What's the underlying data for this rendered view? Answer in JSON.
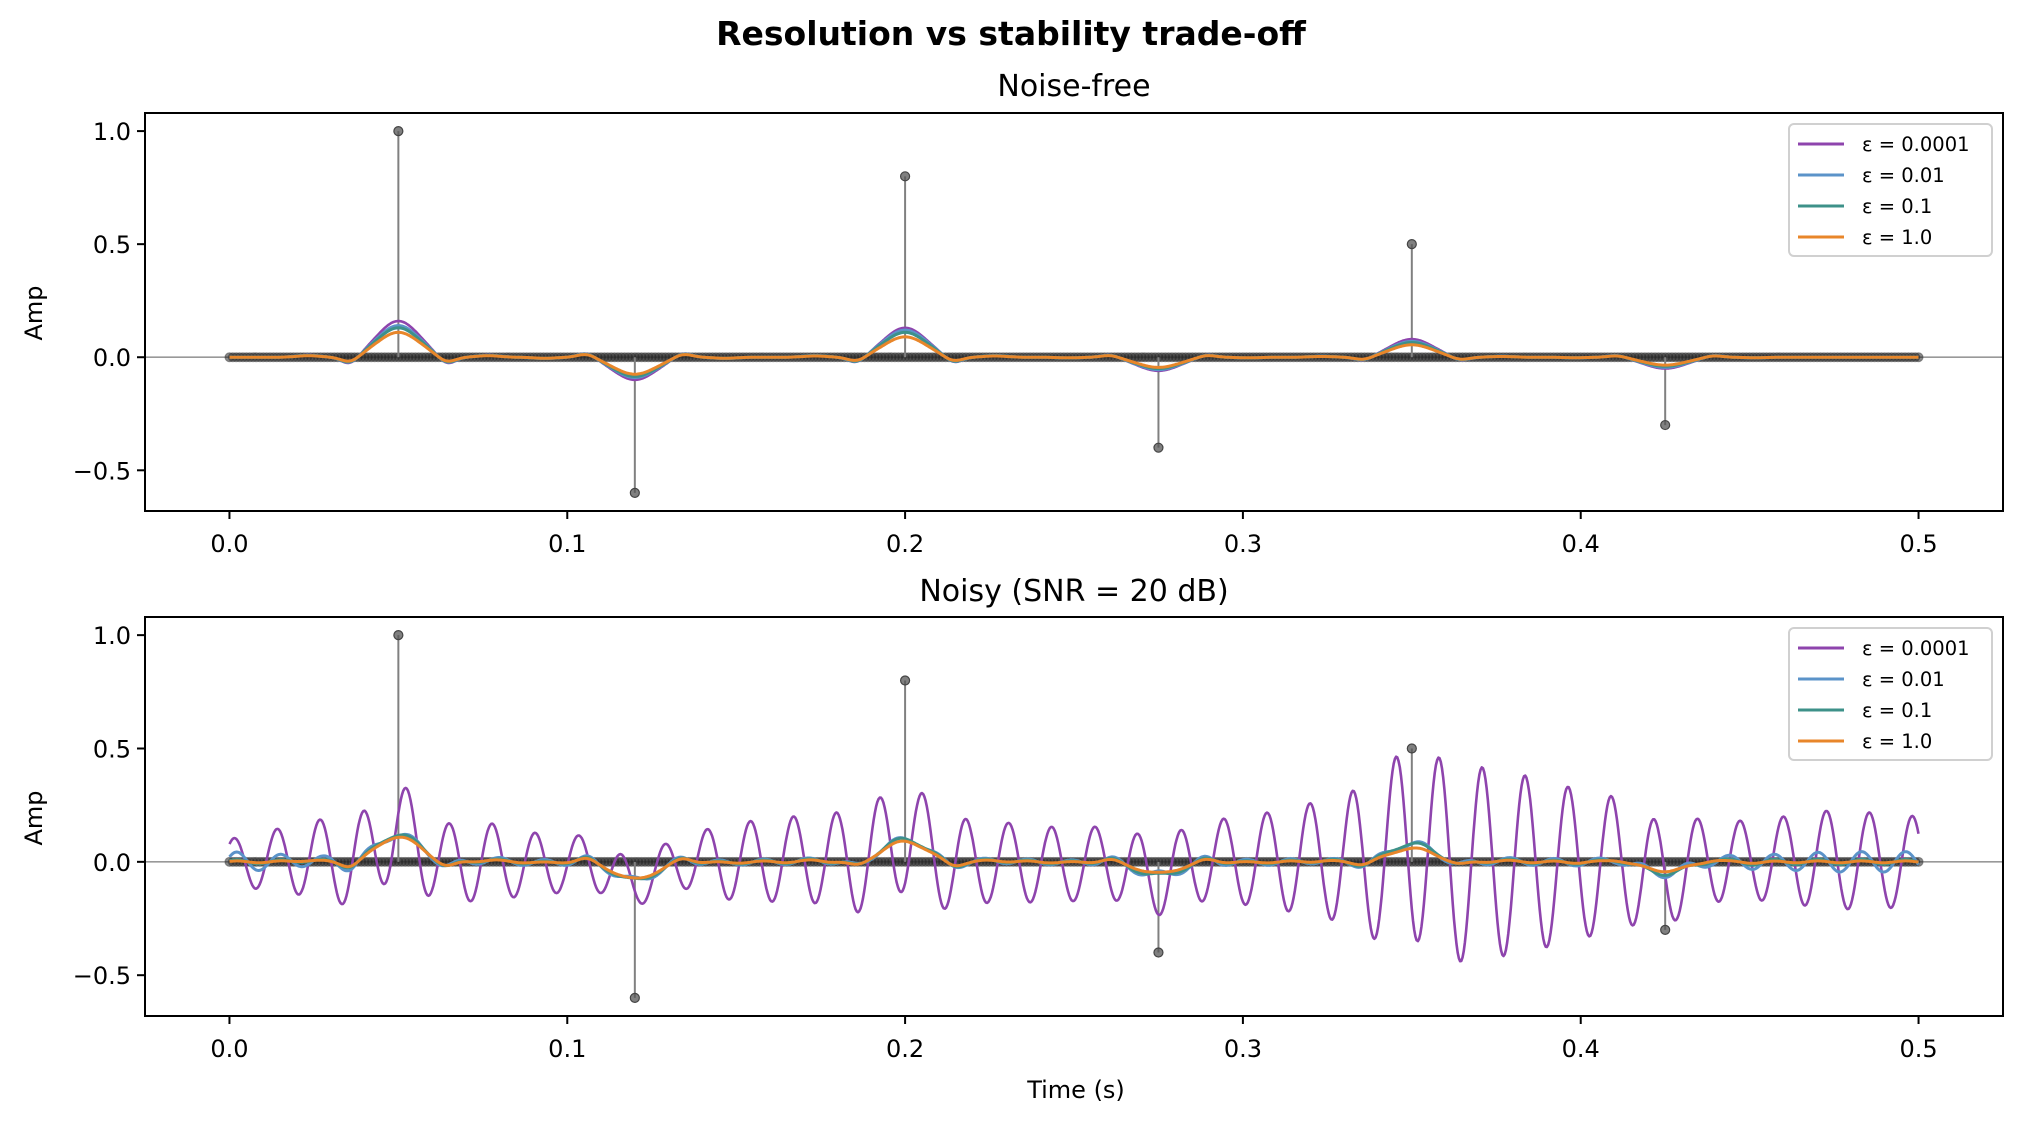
{
  "chart_data": [
    {
      "type": "line",
      "figure_title": "Resolution vs stability trade-off",
      "title": "Noise-free",
      "xlabel": "",
      "ylabel": "Amp",
      "xlim": [
        -0.025,
        0.525
      ],
      "ylim": [
        -0.68,
        1.08
      ],
      "xticks": [
        0.0,
        0.1,
        0.2,
        0.3,
        0.4,
        0.5
      ],
      "xtick_labels": [
        "0.0",
        "0.1",
        "0.2",
        "0.3",
        "0.4",
        "0.5"
      ],
      "yticks": [
        -0.5,
        0.0,
        0.5,
        1.0
      ],
      "ytick_labels": [
        "−0.5",
        "0.0",
        "0.5",
        "1.0"
      ],
      "legend": {
        "position": "upper right",
        "entries": [
          "ε = 0.0001",
          "ε = 0.01",
          "ε = 0.1",
          "ε = 1.0"
        ]
      },
      "true_spikes": {
        "x": [
          0.05,
          0.12,
          0.2,
          0.275,
          0.35,
          0.425
        ],
        "y": [
          1.0,
          -0.6,
          0.8,
          -0.4,
          0.5,
          -0.3
        ]
      },
      "sample_range": [
        0.0,
        0.5
      ],
      "series": [
        {
          "name": "ε = 0.0001",
          "color": "#8e44ad",
          "peak_values": [
            0.16,
            -0.1,
            0.13,
            -0.06,
            0.08,
            -0.05
          ],
          "noise_amplitude": []
        },
        {
          "name": "ε = 0.01",
          "color": "#5b93c9",
          "peak_values": [
            0.14,
            -0.09,
            0.12,
            -0.055,
            0.07,
            -0.045
          ],
          "noise_amplitude": []
        },
        {
          "name": "ε = 0.1",
          "color": "#3d9189",
          "peak_values": [
            0.13,
            -0.085,
            0.11,
            -0.05,
            0.065,
            -0.04
          ],
          "noise_amplitude": []
        },
        {
          "name": "ε = 1.0",
          "color": "#e8862a",
          "peak_values": [
            0.11,
            -0.075,
            0.09,
            -0.045,
            0.055,
            -0.035
          ],
          "noise_amplitude": []
        }
      ]
    },
    {
      "type": "line",
      "title": "Noisy (SNR = 20 dB)",
      "xlabel": "Time (s)",
      "ylabel": "Amp",
      "xlim": [
        -0.025,
        0.525
      ],
      "ylim": [
        -0.68,
        1.08
      ],
      "xticks": [
        0.0,
        0.1,
        0.2,
        0.3,
        0.4,
        0.5
      ],
      "xtick_labels": [
        "0.0",
        "0.1",
        "0.2",
        "0.3",
        "0.4",
        "0.5"
      ],
      "yticks": [
        -0.5,
        0.0,
        0.5,
        1.0
      ],
      "ytick_labels": [
        "−0.5",
        "0.0",
        "0.5",
        "1.0"
      ],
      "legend": {
        "position": "upper right",
        "entries": [
          "ε = 0.0001",
          "ε = 0.01",
          "ε = 0.1",
          "ε = 1.0"
        ]
      },
      "true_spikes": {
        "x": [
          0.05,
          0.12,
          0.2,
          0.275,
          0.35,
          0.425
        ],
        "y": [
          1.0,
          -0.6,
          0.8,
          -0.4,
          0.5,
          -0.3
        ]
      },
      "sample_range": [
        0.0,
        0.5
      ],
      "oscillation_frequency_hz": 78.5,
      "envelope_t": [
        0.0,
        0.025,
        0.05,
        0.075,
        0.1,
        0.125,
        0.15,
        0.175,
        0.2,
        0.225,
        0.25,
        0.275,
        0.3,
        0.325,
        0.35,
        0.375,
        0.4,
        0.425,
        0.45,
        0.475,
        0.5
      ],
      "series": [
        {
          "name": "ε = 0.0001",
          "color": "#8e44ad",
          "peak_values": [
            0.12,
            -0.08,
            0.1,
            -0.06,
            0.08,
            -0.05
          ],
          "noise_amplitude": [
            0.1,
            0.17,
            0.21,
            0.17,
            0.12,
            0.1,
            0.17,
            0.2,
            0.24,
            0.18,
            0.16,
            0.17,
            0.19,
            0.26,
            0.43,
            0.42,
            0.33,
            0.22,
            0.17,
            0.22,
            0.2
          ]
        },
        {
          "name": "ε = 0.01",
          "color": "#5b93c9",
          "peak_values": [
            0.12,
            -0.08,
            0.1,
            -0.06,
            0.08,
            -0.05
          ],
          "noise_amplitude": [
            0.045,
            0.025,
            0.015,
            0.015,
            0.015,
            0.015,
            0.012,
            0.012,
            0.012,
            0.012,
            0.012,
            0.02,
            0.015,
            0.012,
            0.015,
            0.015,
            0.015,
            0.02,
            0.03,
            0.045,
            0.045
          ]
        },
        {
          "name": "ε = 0.1",
          "color": "#3d9189",
          "peak_values": [
            0.12,
            -0.08,
            0.1,
            -0.06,
            0.08,
            -0.05
          ],
          "noise_amplitude": [
            0.01,
            0.008,
            0.008,
            0.008,
            0.008,
            0.008,
            0.008,
            0.008,
            0.008,
            0.008,
            0.008,
            0.01,
            0.008,
            0.008,
            0.008,
            0.008,
            0.008,
            0.01,
            0.012,
            0.012,
            0.01
          ]
        },
        {
          "name": "ε = 1.0",
          "color": "#e8862a",
          "peak_values": [
            0.11,
            -0.075,
            0.09,
            -0.05,
            0.06,
            -0.04
          ],
          "noise_amplitude": [
            0.004,
            0.004,
            0.004,
            0.004,
            0.004,
            0.004,
            0.004,
            0.004,
            0.004,
            0.004,
            0.004,
            0.004,
            0.004,
            0.004,
            0.004,
            0.004,
            0.004,
            0.004,
            0.004,
            0.004,
            0.004
          ]
        }
      ]
    }
  ],
  "colors": {
    "stem": "#808080",
    "marker": "#555555",
    "zero_line": "#999999"
  }
}
